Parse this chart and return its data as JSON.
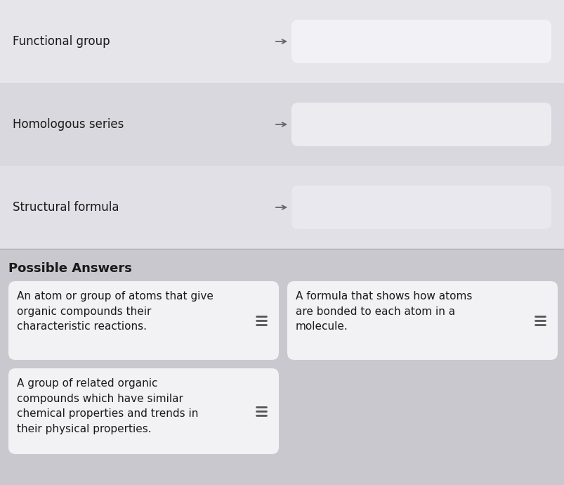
{
  "bg_color": "#d0d0d0",
  "row_colors": [
    "#e8e8ec",
    "#d4d4da",
    "#e8e8ec"
  ],
  "row_lighter": "#f0f0f4",
  "bottom_section_bg": "#c8c8ce",
  "card_bg": "#f2f2f4",
  "card_empty_bg_light": "#f4f4f6",
  "card_empty_bg_dark": "#e6e6ea",
  "title_text": "Possible Answers",
  "title_fontsize": 13,
  "terms": [
    "Functional group",
    "Homologous series",
    "Structural formula"
  ],
  "term_fontsize": 12,
  "answers": [
    "An atom or group of atoms that give\norganic compounds their\ncharacteristic reactions.",
    "A formula that shows how atoms\nare bonded to each atom in a\nmolecule.",
    "A group of related organic\ncompounds which have similar\nchemical properties and trends in\ntheir physical properties."
  ],
  "answer_fontsize": 11,
  "arrow_color": "#666666",
  "text_color": "#1a1a1a",
  "equals_color": "#555555",
  "fig_w": 8.04,
  "fig_h": 6.9,
  "dpi": 100
}
